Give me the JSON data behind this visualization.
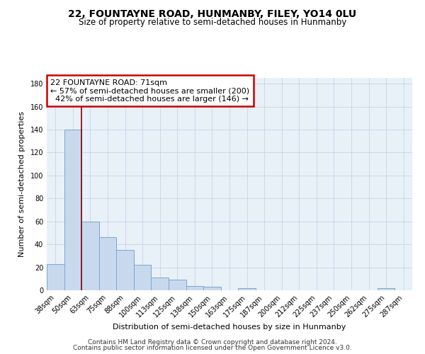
{
  "title": "22, FOUNTAYNE ROAD, HUNMANBY, FILEY, YO14 0LU",
  "subtitle": "Size of property relative to semi-detached houses in Hunmanby",
  "xlabel": "Distribution of semi-detached houses by size in Hunmanby",
  "ylabel": "Number of semi-detached properties",
  "footer_line1": "Contains HM Land Registry data © Crown copyright and database right 2024.",
  "footer_line2": "Contains public sector information licensed under the Open Government Licence v3.0.",
  "categories": [
    "38sqm",
    "50sqm",
    "63sqm",
    "75sqm",
    "88sqm",
    "100sqm",
    "113sqm",
    "125sqm",
    "138sqm",
    "150sqm",
    "163sqm",
    "175sqm",
    "187sqm",
    "200sqm",
    "212sqm",
    "225sqm",
    "237sqm",
    "250sqm",
    "262sqm",
    "275sqm",
    "287sqm"
  ],
  "values": [
    23,
    140,
    60,
    46,
    35,
    22,
    11,
    9,
    4,
    3,
    0,
    2,
    0,
    0,
    0,
    0,
    0,
    0,
    0,
    2,
    0
  ],
  "bar_color": "#c8d9ee",
  "bar_edge_color": "#7ba7cc",
  "ylim": [
    0,
    185
  ],
  "yticks": [
    0,
    20,
    40,
    60,
    80,
    100,
    120,
    140,
    160,
    180
  ],
  "property_label": "22 FOUNTAYNE ROAD: 71sqm",
  "smaller_pct": "57%",
  "smaller_count": 200,
  "larger_pct": "42%",
  "larger_count": 146,
  "redline_x": 1.5,
  "background_color": "#ffffff",
  "plot_bg_color": "#e8f0f8",
  "grid_color": "#c8d4e8",
  "title_fontsize": 10,
  "subtitle_fontsize": 8.5,
  "axis_label_fontsize": 8,
  "tick_fontsize": 7,
  "annotation_fontsize": 8,
  "footer_fontsize": 6.5
}
